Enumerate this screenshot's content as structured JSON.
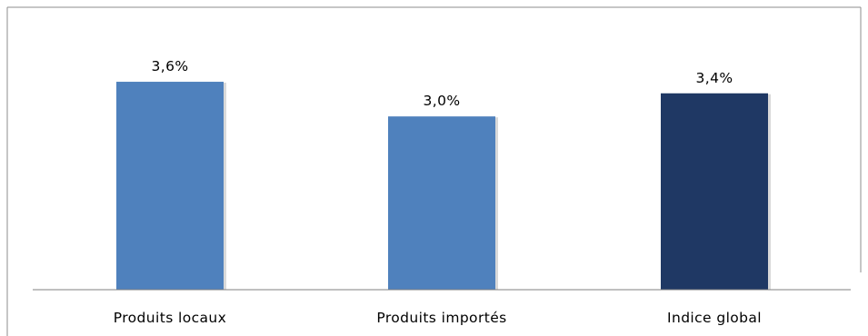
{
  "chart_data": {
    "type": "bar",
    "title": "",
    "xlabel": "",
    "ylabel": "",
    "categories": [
      "Produits locaux",
      "Produits importés",
      "Indice global"
    ],
    "values": [
      3.6,
      3.0,
      3.4
    ],
    "data_labels": [
      "3,6%",
      "3,0%",
      "3,4%"
    ],
    "bar_colors": [
      "#4f81bd",
      "#4f81bd",
      "#1f3864"
    ],
    "ylim": [
      0,
      4.0
    ],
    "grid": false,
    "legend": "none"
  }
}
